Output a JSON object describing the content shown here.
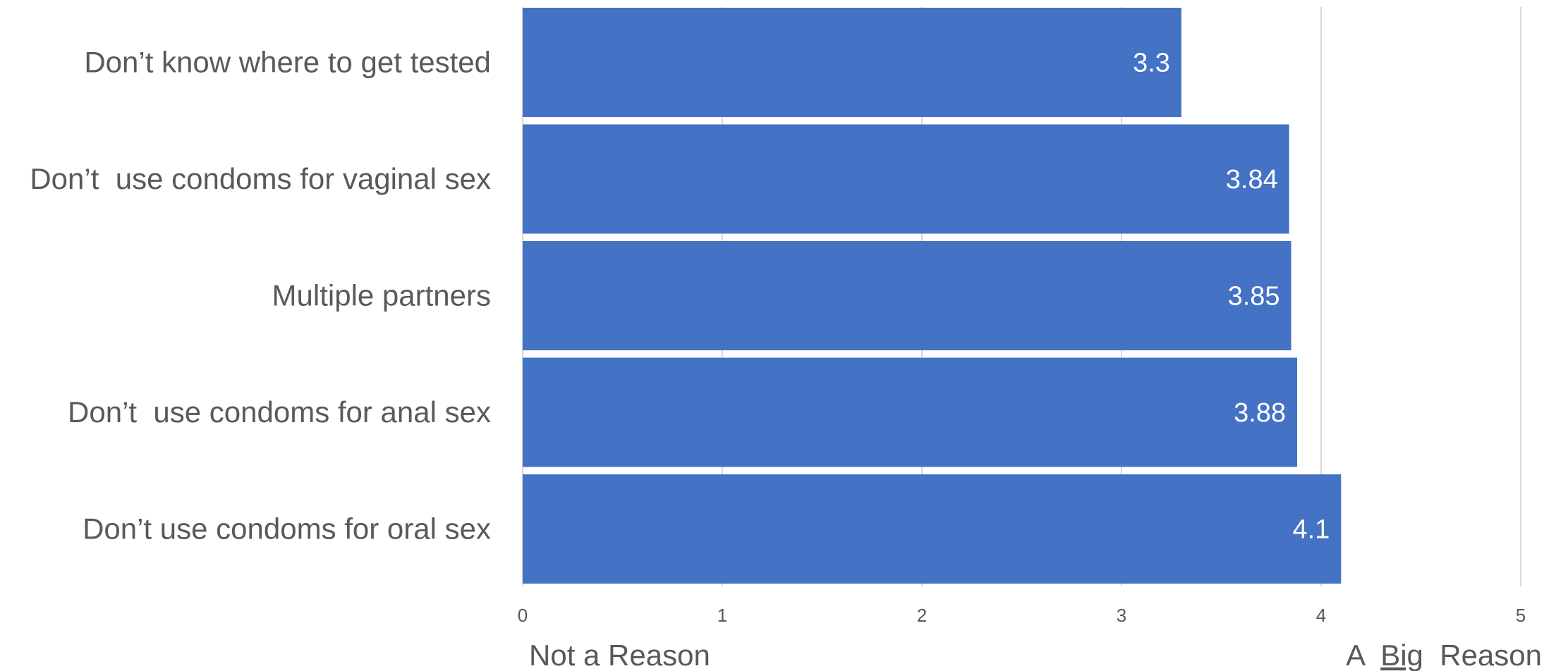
{
  "colors": {
    "bar": "#4472C4",
    "grid": "#D9D9D9",
    "text": "#595959",
    "data_label": "#FFFFFF"
  },
  "chart_data": {
    "type": "bar",
    "orientation": "horizontal",
    "categories": [
      "Don’t know where to get tested",
      "Don’t  use condoms for vaginal sex",
      "Multiple partners",
      "Don’t  use condoms for anal sex",
      "Don’t use condoms for oral sex"
    ],
    "values": [
      3.3,
      3.84,
      3.85,
      3.88,
      4.1
    ],
    "data_labels": [
      "3.3",
      "3.84",
      "3.85",
      "3.88",
      "4.1"
    ],
    "x_ticks": [
      "0",
      "1",
      "2",
      "3",
      "4",
      "5"
    ],
    "xlim": [
      0,
      5
    ],
    "x_end_labels": {
      "left": "Not a Reason",
      "right_prefix": "A ",
      "right_emphasis": "Big",
      "right_suffix": " Reason"
    },
    "grid": true,
    "legend": "none"
  }
}
